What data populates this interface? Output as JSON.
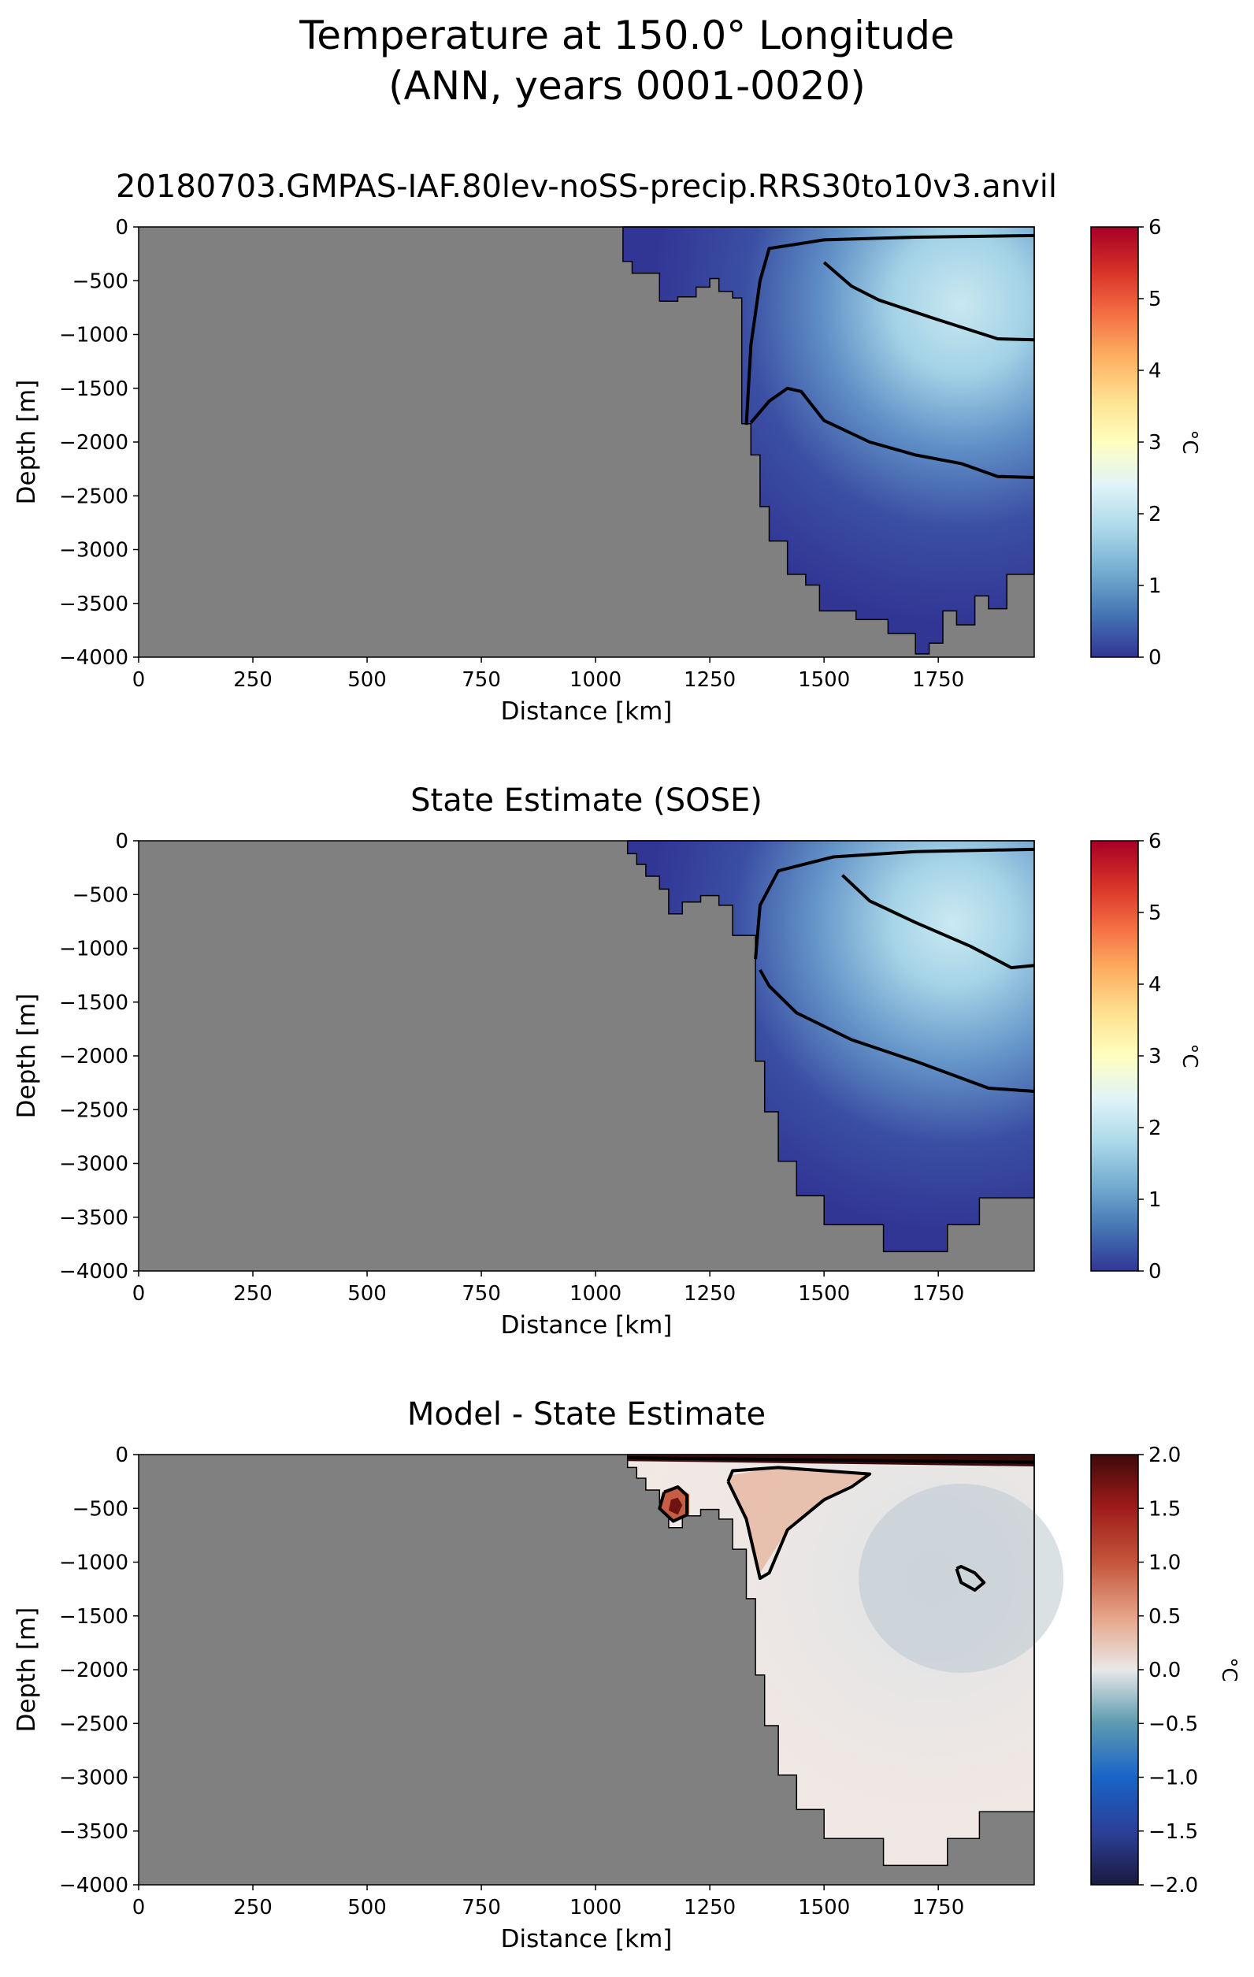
{
  "figure": {
    "title_line1": "Temperature at 150.0° Longitude",
    "title_line2": "(ANN, years 0001-0020)",
    "land_color": "#808080"
  },
  "chart_data": [
    {
      "type": "heatmap",
      "title": "20180703.GMPAS-IAF.80lev-noSS-precip.RRS30to10v3.anvil",
      "xlabel": "Distance [km]",
      "ylabel": "Depth [m]",
      "xlim": [
        0,
        1960
      ],
      "ylim": [
        -4000,
        0
      ],
      "xticks": [
        "0",
        "250",
        "500",
        "750",
        "1000",
        "1250",
        "1500",
        "1750"
      ],
      "yticks": [
        "0",
        "−500",
        "−1000",
        "−1500",
        "−2000",
        "−2500",
        "−3000",
        "−3500",
        "−4000"
      ],
      "colorbar": {
        "label": "°C",
        "range": [
          0,
          6
        ],
        "ticks": [
          "0",
          "1",
          "2",
          "3",
          "4",
          "5",
          "6"
        ],
        "colormap": "RdYlBu_r"
      },
      "contour_levels": [
        0.5,
        1.5
      ],
      "ocean_boundary": [
        [
          1060,
          0
        ],
        [
          1060,
          -320
        ],
        [
          1080,
          -320
        ],
        [
          1080,
          -430
        ],
        [
          1140,
          -430
        ],
        [
          1140,
          -690
        ],
        [
          1180,
          -690
        ],
        [
          1180,
          -650
        ],
        [
          1220,
          -650
        ],
        [
          1220,
          -560
        ],
        [
          1250,
          -560
        ],
        [
          1250,
          -480
        ],
        [
          1270,
          -480
        ],
        [
          1270,
          -600
        ],
        [
          1300,
          -600
        ],
        [
          1300,
          -660
        ],
        [
          1320,
          -660
        ],
        [
          1320,
          -1830
        ],
        [
          1340,
          -1830
        ],
        [
          1340,
          -2120
        ],
        [
          1360,
          -2120
        ],
        [
          1360,
          -2600
        ],
        [
          1380,
          -2600
        ],
        [
          1380,
          -2920
        ],
        [
          1420,
          -2920
        ],
        [
          1420,
          -3230
        ],
        [
          1460,
          -3230
        ],
        [
          1460,
          -3330
        ],
        [
          1490,
          -3330
        ],
        [
          1490,
          -3570
        ],
        [
          1570,
          -3570
        ],
        [
          1570,
          -3650
        ],
        [
          1640,
          -3650
        ],
        [
          1640,
          -3780
        ],
        [
          1700,
          -3780
        ],
        [
          1700,
          -3970
        ],
        [
          1730,
          -3970
        ],
        [
          1730,
          -3870
        ],
        [
          1760,
          -3870
        ],
        [
          1760,
          -3570
        ],
        [
          1790,
          -3570
        ],
        [
          1790,
          -3700
        ],
        [
          1830,
          -3700
        ],
        [
          1830,
          -3430
        ],
        [
          1860,
          -3430
        ],
        [
          1860,
          -3550
        ],
        [
          1900,
          -3550
        ],
        [
          1900,
          -3230
        ],
        [
          1960,
          -3230
        ],
        [
          1960,
          0
        ]
      ],
      "contours": [
        [
          [
            1330,
            -1840
          ],
          [
            1340,
            -1100
          ],
          [
            1360,
            -500
          ],
          [
            1380,
            -200
          ],
          [
            1500,
            -120
          ],
          [
            1700,
            -95
          ],
          [
            1960,
            -80
          ]
        ],
        [
          [
            1500,
            -330
          ],
          [
            1560,
            -550
          ],
          [
            1620,
            -680
          ],
          [
            1740,
            -850
          ],
          [
            1880,
            -1040
          ],
          [
            1960,
            -1050
          ]
        ],
        [
          [
            1340,
            -1820
          ],
          [
            1380,
            -1620
          ],
          [
            1420,
            -1500
          ],
          [
            1450,
            -1530
          ],
          [
            1500,
            -1800
          ],
          [
            1600,
            -2000
          ],
          [
            1700,
            -2120
          ],
          [
            1800,
            -2200
          ],
          [
            1880,
            -2320
          ],
          [
            1960,
            -2330
          ]
        ]
      ]
    },
    {
      "type": "heatmap",
      "title": "State Estimate (SOSE)",
      "xlabel": "Distance [km]",
      "ylabel": "Depth [m]",
      "xlim": [
        0,
        1960
      ],
      "ylim": [
        -4000,
        0
      ],
      "xticks": [
        "0",
        "250",
        "500",
        "750",
        "1000",
        "1250",
        "1500",
        "1750"
      ],
      "yticks": [
        "0",
        "−500",
        "−1000",
        "−1500",
        "−2000",
        "−2500",
        "−3000",
        "−3500",
        "−4000"
      ],
      "colorbar": {
        "label": "°C",
        "range": [
          0,
          6
        ],
        "ticks": [
          "0",
          "1",
          "2",
          "3",
          "4",
          "5",
          "6"
        ],
        "colormap": "RdYlBu_r"
      },
      "contour_levels": [
        0.5,
        1.5
      ],
      "ocean_boundary": [
        [
          1070,
          0
        ],
        [
          1070,
          -120
        ],
        [
          1090,
          -120
        ],
        [
          1090,
          -220
        ],
        [
          1110,
          -220
        ],
        [
          1110,
          -330
        ],
        [
          1140,
          -330
        ],
        [
          1140,
          -450
        ],
        [
          1160,
          -450
        ],
        [
          1160,
          -680
        ],
        [
          1190,
          -680
        ],
        [
          1190,
          -570
        ],
        [
          1230,
          -570
        ],
        [
          1230,
          -510
        ],
        [
          1270,
          -510
        ],
        [
          1270,
          -600
        ],
        [
          1300,
          -600
        ],
        [
          1300,
          -880
        ],
        [
          1350,
          -880
        ],
        [
          1350,
          -2050
        ],
        [
          1370,
          -2050
        ],
        [
          1370,
          -2520
        ],
        [
          1400,
          -2520
        ],
        [
          1400,
          -2980
        ],
        [
          1440,
          -2980
        ],
        [
          1440,
          -3300
        ],
        [
          1500,
          -3300
        ],
        [
          1500,
          -3570
        ],
        [
          1630,
          -3570
        ],
        [
          1630,
          -3820
        ],
        [
          1770,
          -3820
        ],
        [
          1770,
          -3570
        ],
        [
          1840,
          -3570
        ],
        [
          1840,
          -3320
        ],
        [
          1960,
          -3320
        ],
        [
          1960,
          0
        ]
      ],
      "contours": [
        [
          [
            1350,
            -1100
          ],
          [
            1360,
            -600
          ],
          [
            1400,
            -280
          ],
          [
            1520,
            -150
          ],
          [
            1700,
            -100
          ],
          [
            1960,
            -80
          ]
        ],
        [
          [
            1540,
            -320
          ],
          [
            1600,
            -560
          ],
          [
            1700,
            -760
          ],
          [
            1820,
            -980
          ],
          [
            1910,
            -1180
          ],
          [
            1960,
            -1160
          ]
        ],
        [
          [
            1360,
            -1200
          ],
          [
            1380,
            -1350
          ],
          [
            1440,
            -1600
          ],
          [
            1560,
            -1850
          ],
          [
            1700,
            -2050
          ],
          [
            1860,
            -2300
          ],
          [
            1960,
            -2330
          ]
        ]
      ]
    },
    {
      "type": "heatmap",
      "title": "Model - State Estimate",
      "xlabel": "Distance [km]",
      "ylabel": "Depth [m]",
      "xlim": [
        0,
        1960
      ],
      "ylim": [
        -4000,
        0
      ],
      "xticks": [
        "0",
        "250",
        "500",
        "750",
        "1000",
        "1250",
        "1500",
        "1750"
      ],
      "yticks": [
        "0",
        "−500",
        "−1000",
        "−1500",
        "−2000",
        "−2500",
        "−3000",
        "−3500",
        "−4000"
      ],
      "colorbar": {
        "label": "°C",
        "range": [
          -2,
          2
        ],
        "ticks": [
          "−2.0",
          "−1.5",
          "−1.0",
          "−0.5",
          "0.0",
          "0.5",
          "1.0",
          "1.5",
          "2.0"
        ],
        "colormap": "RdBu_r"
      },
      "contour_levels": [
        -0.5,
        0.5
      ],
      "ocean_boundary": [
        [
          1070,
          0
        ],
        [
          1070,
          -120
        ],
        [
          1090,
          -120
        ],
        [
          1090,
          -220
        ],
        [
          1110,
          -220
        ],
        [
          1110,
          -330
        ],
        [
          1140,
          -330
        ],
        [
          1140,
          -450
        ],
        [
          1160,
          -450
        ],
        [
          1160,
          -680
        ],
        [
          1190,
          -680
        ],
        [
          1190,
          -570
        ],
        [
          1230,
          -570
        ],
        [
          1230,
          -510
        ],
        [
          1270,
          -510
        ],
        [
          1270,
          -600
        ],
        [
          1300,
          -600
        ],
        [
          1300,
          -880
        ],
        [
          1330,
          -880
        ],
        [
          1330,
          -1340
        ],
        [
          1350,
          -1340
        ],
        [
          1350,
          -2050
        ],
        [
          1370,
          -2050
        ],
        [
          1370,
          -2520
        ],
        [
          1400,
          -2520
        ],
        [
          1400,
          -2980
        ],
        [
          1440,
          -2980
        ],
        [
          1440,
          -3300
        ],
        [
          1500,
          -3300
        ],
        [
          1500,
          -3570
        ],
        [
          1630,
          -3570
        ],
        [
          1630,
          -3820
        ],
        [
          1770,
          -3820
        ],
        [
          1770,
          -3570
        ],
        [
          1840,
          -3570
        ],
        [
          1840,
          -3320
        ],
        [
          1960,
          -3320
        ],
        [
          1960,
          0
        ]
      ],
      "contours": [
        [
          [
            1070,
            -30
          ],
          [
            1300,
            -40
          ],
          [
            1500,
            -50
          ],
          [
            1700,
            -60
          ],
          [
            1960,
            -70
          ]
        ],
        [
          [
            1150,
            -350
          ],
          [
            1140,
            -500
          ],
          [
            1170,
            -620
          ],
          [
            1200,
            -560
          ],
          [
            1200,
            -380
          ],
          [
            1180,
            -300
          ],
          [
            1150,
            -350
          ]
        ],
        [
          [
            1290,
            -250
          ],
          [
            1330,
            -600
          ],
          [
            1360,
            -1150
          ],
          [
            1380,
            -1100
          ],
          [
            1420,
            -700
          ],
          [
            1500,
            -420
          ],
          [
            1560,
            -300
          ],
          [
            1600,
            -180
          ],
          [
            1500,
            -150
          ],
          [
            1400,
            -120
          ],
          [
            1300,
            -150
          ],
          [
            1290,
            -250
          ]
        ],
        [
          [
            1790,
            -1060
          ],
          [
            1800,
            -1190
          ],
          [
            1830,
            -1260
          ],
          [
            1850,
            -1190
          ],
          [
            1830,
            -1100
          ],
          [
            1800,
            -1040
          ],
          [
            1790,
            -1060
          ]
        ]
      ]
    }
  ]
}
